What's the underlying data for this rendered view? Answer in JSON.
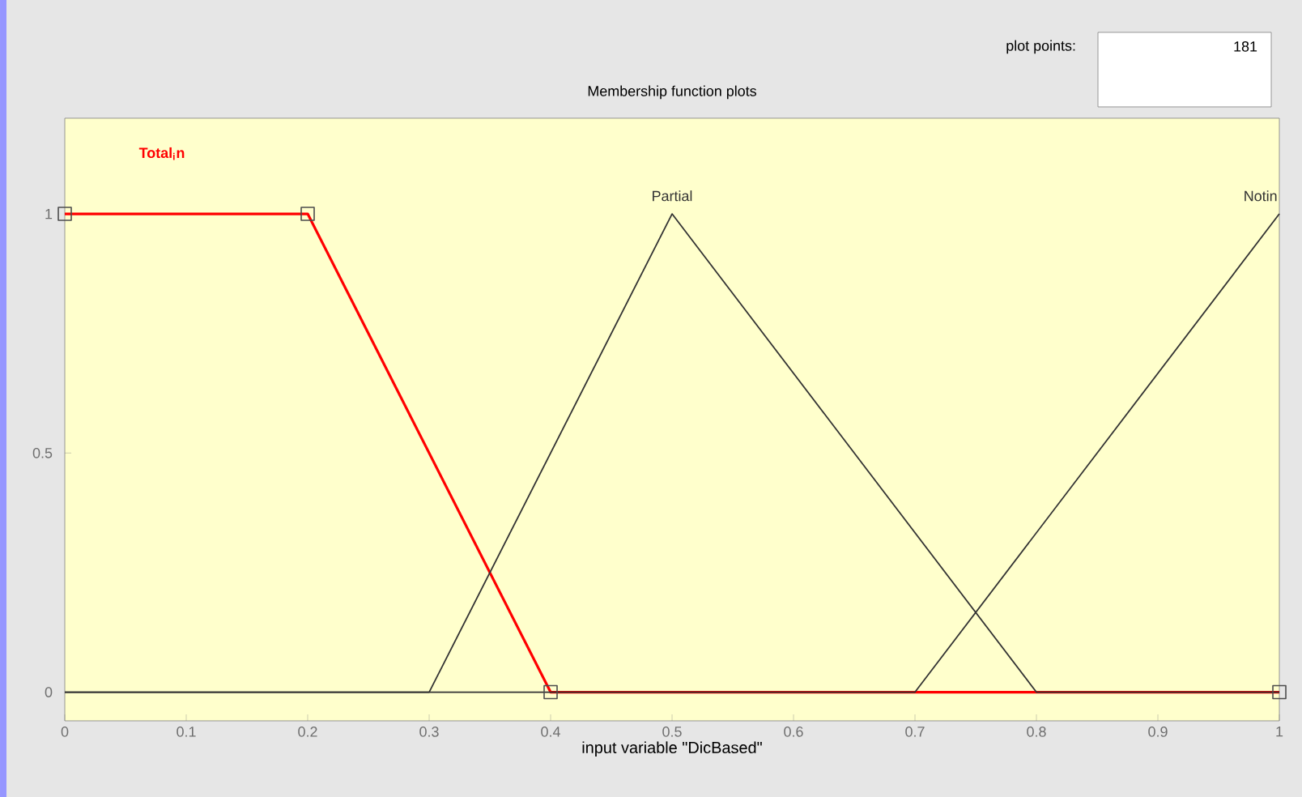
{
  "chart_data": {
    "type": "line",
    "title": "Membership function plots",
    "xlabel": "input variable \"DicBased\"",
    "series": [
      {
        "name": "Total$_{i}$n",
        "color": "#ff0000",
        "x": [
          0,
          0.2,
          0.4,
          1
        ],
        "values": [
          1,
          1,
          0,
          0
        ],
        "marker": "square"
      },
      {
        "name": "Partial",
        "color": "#333333",
        "x": [
          0,
          0.3,
          0.5,
          0.8,
          1
        ],
        "values": [
          0,
          0,
          1,
          0,
          0
        ]
      },
      {
        "name": "Notin",
        "color": "#333333",
        "x": [
          0,
          0.7,
          1
        ],
        "values": [
          0,
          0,
          1
        ]
      }
    ],
    "xlim": [
      0,
      1
    ],
    "ylim": [
      -0.06,
      1.2
    ],
    "xticks": [
      0,
      0.1,
      0.2,
      0.3,
      0.4,
      0.5,
      0.6,
      0.7,
      0.8,
      0.9,
      1
    ],
    "yticks": [
      0,
      0.5,
      1
    ],
    "grid": false,
    "legend": false,
    "line_style": "solid",
    "annotations": [
      "plot points:",
      "181"
    ]
  }
}
